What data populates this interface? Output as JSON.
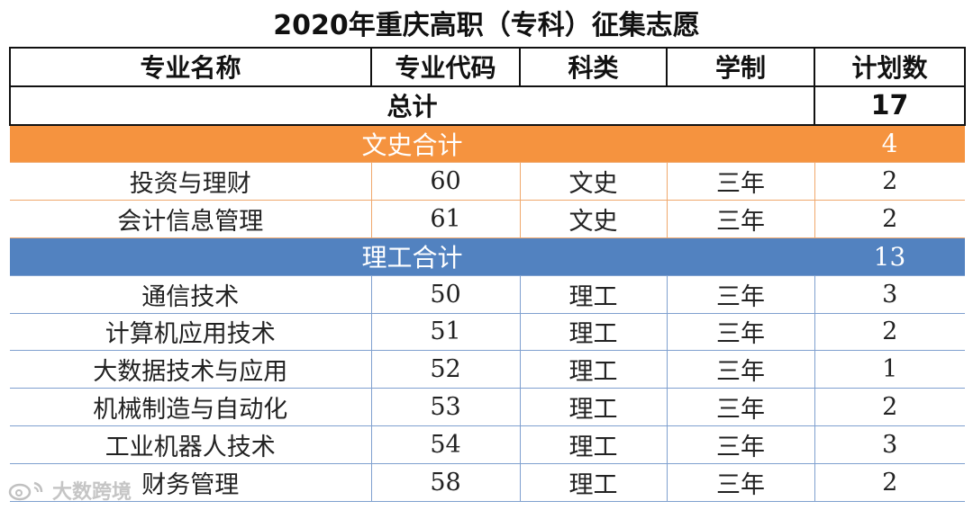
{
  "title": "2020年重庆高职（专科）征集志愿",
  "headers": [
    "专业名称",
    "专业代码",
    "科类",
    "学制",
    "计划数"
  ],
  "total": {
    "label": "总计",
    "count": "17"
  },
  "sections": [
    {
      "label": "文史合计",
      "count": "4",
      "color": "#f5933f",
      "rows": [
        {
          "name": "投资与理财",
          "code": "60",
          "category": "文史",
          "duration": "三年",
          "count": "2"
        },
        {
          "name": "会计信息管理",
          "code": "61",
          "category": "文史",
          "duration": "三年",
          "count": "2"
        }
      ]
    },
    {
      "label": "理工合计",
      "count": "13",
      "color": "#5282c0",
      "rows": [
        {
          "name": "通信技术",
          "code": "50",
          "category": "理工",
          "duration": "三年",
          "count": "3"
        },
        {
          "name": "计算机应用技术",
          "code": "51",
          "category": "理工",
          "duration": "三年",
          "count": "2"
        },
        {
          "name": "大数据技术与应用",
          "code": "52",
          "category": "理工",
          "duration": "三年",
          "count": "1"
        },
        {
          "name": "机械制造与自动化",
          "code": "53",
          "category": "理工",
          "duration": "三年",
          "count": "2"
        },
        {
          "name": "工业机器人技术",
          "code": "54",
          "category": "理工",
          "duration": "三年",
          "count": "3"
        },
        {
          "name": "财务管理",
          "code": "58",
          "category": "理工",
          "duration": "三年",
          "count": "2"
        }
      ]
    }
  ],
  "watermark": {
    "text": "大数跨境",
    "icon": "weibo-logo-icon"
  }
}
